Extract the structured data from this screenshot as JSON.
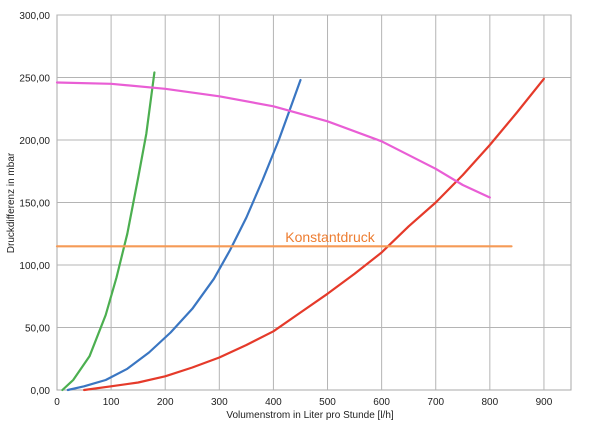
{
  "chart_data": {
    "type": "line",
    "xlabel": "Volumenstrom in Liter pro Stunde [l/h]",
    "ylabel": "Druckdifferenz in mbar",
    "xlim": [
      0,
      950
    ],
    "ylim": [
      0,
      300
    ],
    "x_ticks": [
      "0",
      "100",
      "200",
      "300",
      "400",
      "500",
      "600",
      "700",
      "800",
      "900"
    ],
    "y_ticks": [
      "0,00",
      "50,00",
      "100,00",
      "150,00",
      "200,00",
      "250,00",
      "300,00"
    ],
    "grid": true,
    "annotation": {
      "text": "Konstantdruck",
      "color": "#ed7d31"
    },
    "series": [
      {
        "color": "#4caf50",
        "x": [
          10,
          30,
          60,
          90,
          110,
          130,
          150,
          165,
          180
        ],
        "y": [
          0,
          8,
          27,
          60,
          90,
          125,
          170,
          205,
          254
        ]
      },
      {
        "color": "#3a76c2",
        "x": [
          20,
          50,
          90,
          130,
          170,
          210,
          250,
          290,
          320,
          350,
          380,
          410,
          430,
          450
        ],
        "y": [
          0,
          3,
          8,
          17,
          30,
          46,
          65,
          89,
          112,
          138,
          168,
          200,
          224,
          248
        ]
      },
      {
        "color": "#e53a2a",
        "x": [
          50,
          100,
          150,
          200,
          250,
          300,
          350,
          400,
          450,
          500,
          550,
          600,
          650,
          700,
          750,
          800,
          850,
          900
        ],
        "y": [
          0,
          3,
          6,
          11,
          18,
          26,
          36,
          47,
          62,
          77,
          93,
          110,
          131,
          150,
          172,
          196,
          222,
          249
        ]
      },
      {
        "color": "#e95ed5",
        "x": [
          0,
          100,
          200,
          300,
          400,
          500,
          600,
          700,
          750,
          800
        ],
        "y": [
          246,
          245,
          241,
          235,
          227,
          215,
          199,
          177,
          164,
          154
        ]
      },
      {
        "color": "#f59a56",
        "x": [
          0,
          840
        ],
        "y": [
          115,
          115
        ]
      }
    ]
  }
}
